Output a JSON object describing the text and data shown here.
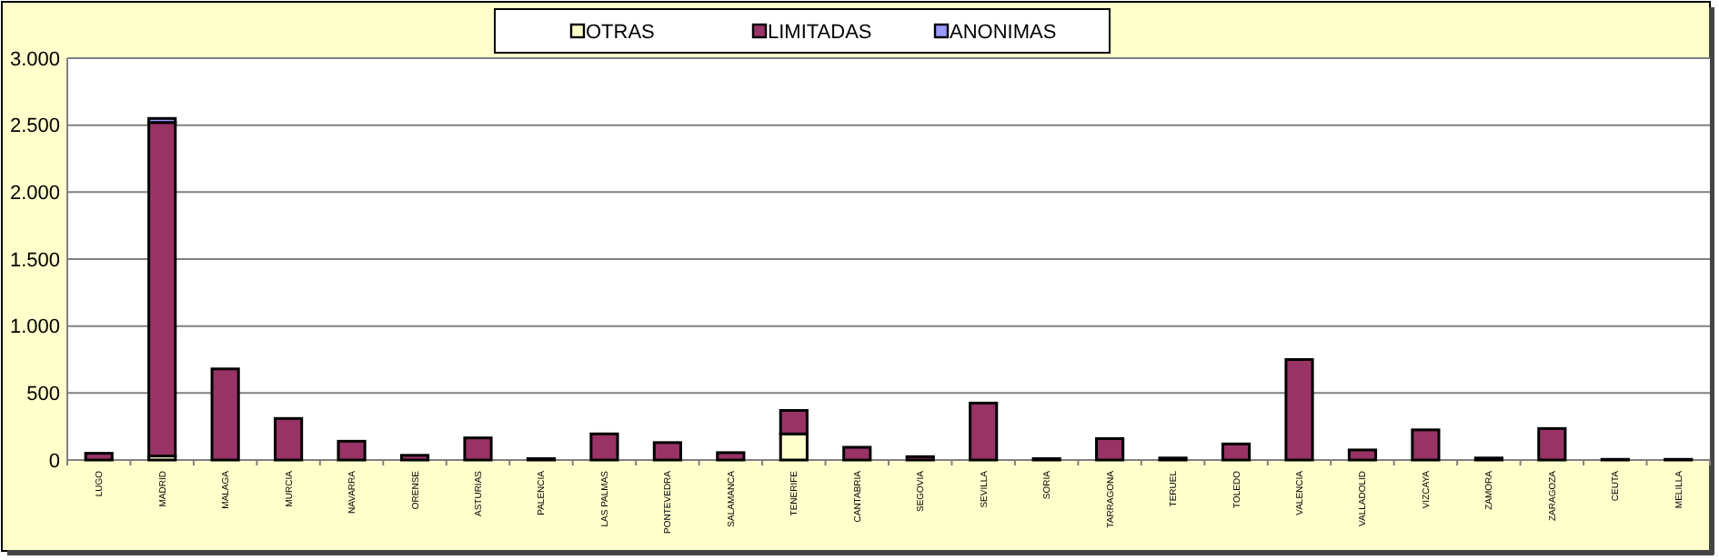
{
  "chart_data": {
    "type": "bar",
    "stacked": true,
    "legend": "top",
    "grid": "y",
    "categories": [
      "LUGO",
      "MADRID",
      "MALAGA",
      "MURCIA",
      "NAVARRA",
      "ORENSE",
      "ASTURIAS",
      "PALENCIA",
      "LAS PALMAS",
      "PONTEVEDRA",
      "SALAMANCA",
      "TENERIFE",
      "CANTABRIA",
      "SEGOVIA",
      "SEVILLA",
      "SORIA",
      "TARRAGONA",
      "TERUEL",
      "TOLEDO",
      "VALENCIA",
      "VALLADOLID",
      "VIZCAYA",
      "ZAMORA",
      "ZARAGOZA",
      "CEUTA",
      "MELILLA"
    ],
    "series": [
      {
        "name": "OTRAS",
        "color": "#ffffcc",
        "values": [
          0,
          30,
          0,
          0,
          0,
          0,
          0,
          0,
          0,
          0,
          0,
          195,
          0,
          0,
          0,
          0,
          0,
          0,
          0,
          0,
          0,
          0,
          0,
          0,
          0,
          0
        ]
      },
      {
        "name": "LIMITADAS",
        "color": "#993366",
        "values": [
          50,
          2490,
          680,
          310,
          140,
          35,
          165,
          10,
          195,
          130,
          55,
          175,
          95,
          25,
          425,
          10,
          160,
          15,
          120,
          750,
          75,
          225,
          15,
          235,
          5,
          5
        ]
      },
      {
        "name": "ANONIMAS",
        "color": "#9999ff",
        "values": [
          0,
          30,
          0,
          0,
          0,
          0,
          0,
          0,
          0,
          0,
          0,
          0,
          0,
          0,
          0,
          0,
          0,
          0,
          0,
          0,
          0,
          0,
          0,
          0,
          0,
          0
        ]
      }
    ],
    "ylim": [
      0,
      3000
    ],
    "yticks": [
      {
        "value": 0,
        "label": "0"
      },
      {
        "value": 500,
        "label": "500"
      },
      {
        "value": 1000,
        "label": "1.000"
      },
      {
        "value": 1500,
        "label": "1.500"
      },
      {
        "value": 2000,
        "label": "2.000"
      },
      {
        "value": 2500,
        "label": "2.500"
      },
      {
        "value": 3000,
        "label": "3.000"
      }
    ]
  }
}
